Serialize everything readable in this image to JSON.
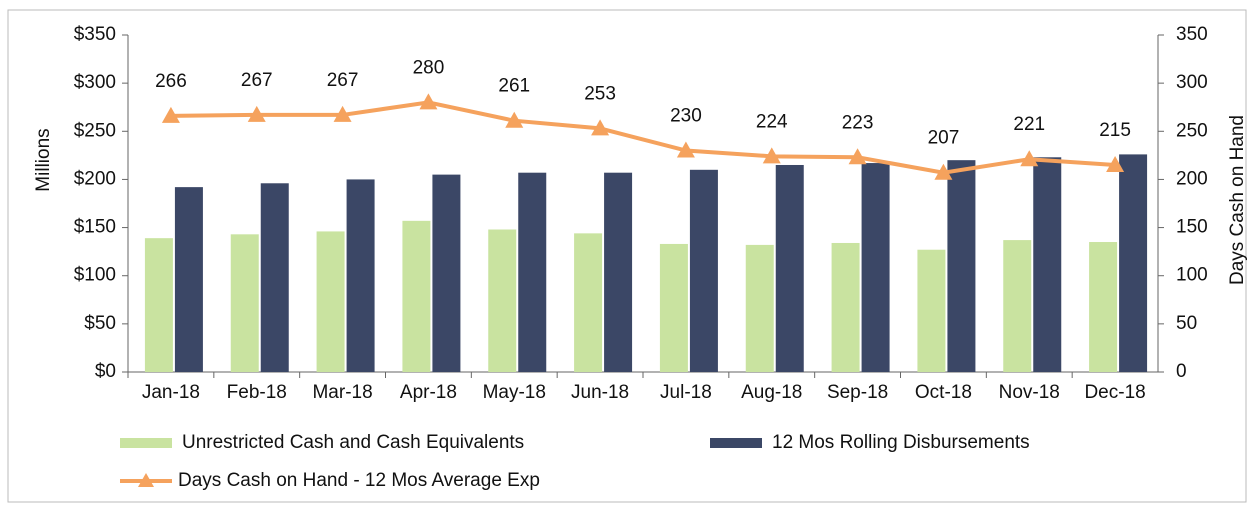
{
  "chart_data": {
    "type": "bar",
    "y_label": "Millions",
    "y2_label": "Days Cash on Hand",
    "categories": [
      "Jan-18",
      "Feb-18",
      "Mar-18",
      "Apr-18",
      "May-18",
      "Jun-18",
      "Jul-18",
      "Aug-18",
      "Sep-18",
      "Oct-18",
      "Nov-18",
      "Dec-18"
    ],
    "series": [
      {
        "name": "Unrestricted Cash and Cash Equivalents",
        "type": "bar",
        "color": "#c9e3a0",
        "values": [
          139,
          143,
          146,
          157,
          148,
          144,
          133,
          132,
          134,
          127,
          137,
          135
        ]
      },
      {
        "name": "12 Mos Rolling Disbursements",
        "type": "bar",
        "color": "#3b4766",
        "values": [
          192,
          196,
          200,
          205,
          207,
          207,
          210,
          215,
          217,
          220,
          223,
          226
        ]
      },
      {
        "name": "Days Cash on Hand - 12 Mos Average Exp",
        "type": "line",
        "axis": "y2",
        "color": "#f5a25d",
        "values": [
          266,
          267,
          267,
          280,
          261,
          253,
          230,
          224,
          223,
          207,
          221,
          215
        ]
      }
    ],
    "ylim": [
      0,
      350
    ],
    "yticks": [
      {
        "value": 0,
        "label": "$0"
      },
      {
        "value": 50,
        "label": "$50"
      },
      {
        "value": 100,
        "label": "$100"
      },
      {
        "value": 150,
        "label": "$150"
      },
      {
        "value": 200,
        "label": "$200"
      },
      {
        "value": 250,
        "label": "$250"
      },
      {
        "value": 300,
        "label": "$300"
      },
      {
        "value": 350,
        "label": "$350"
      }
    ],
    "y2lim": [
      0,
      350
    ],
    "y2ticks": [
      0,
      50,
      100,
      150,
      200,
      250,
      300,
      350
    ],
    "grid": false
  }
}
